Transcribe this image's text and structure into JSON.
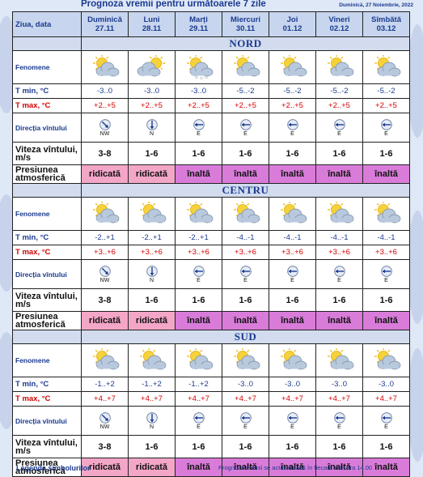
{
  "title": "Prognoza vremii pentru următoarele 7 zile",
  "date_note": "Duminică, 27 Noiembrie, 2022",
  "header_label": "Ziua, data",
  "days": [
    {
      "name": "Duminică",
      "date": "27.11"
    },
    {
      "name": "Luni",
      "date": "28.11"
    },
    {
      "name": "Marți",
      "date": "29.11"
    },
    {
      "name": "Miercuri",
      "date": "30.11"
    },
    {
      "name": "Joi",
      "date": "01.12"
    },
    {
      "name": "Vineri",
      "date": "02.12"
    },
    {
      "name": "Sîmbătă",
      "date": "03.12"
    }
  ],
  "row_labels": {
    "fenomene": "Fenomene",
    "tmin": "T min, °C",
    "tmax": "T max, °C",
    "directie": "Direcția vîntului",
    "viteza": "Viteza vîntului, m/s",
    "presiune": "Presiunea atmosferică"
  },
  "regions": [
    {
      "name": "NORD",
      "icons": [
        "sun-cloud-icon",
        "cloud-sun-behind-icon",
        "cloud-snow-icon",
        "sun-cloud-icon",
        "sun-cloud-icon",
        "sun-cloud-icon",
        "sun-cloud-icon"
      ],
      "tmin": [
        "-3..0",
        "-3..0",
        "-3..0",
        "-5..-2",
        "-5..-2",
        "-5..-2",
        "-5..-2"
      ],
      "tmax": [
        "+2..+5",
        "+2..+5",
        "+2..+5",
        "+2..+5",
        "+2..+5",
        "+2..+5",
        "+2..+5"
      ],
      "dir": [
        "NW",
        "N",
        "E",
        "E",
        "E",
        "E",
        "E"
      ],
      "speed": [
        "3-8",
        "1-6",
        "1-6",
        "1-6",
        "1-6",
        "1-6",
        "1-6"
      ],
      "pressure": [
        "ridicată",
        "ridicată",
        "înaltă",
        "înaltă",
        "înaltă",
        "înaltă",
        "înaltă"
      ]
    },
    {
      "name": "CENTRU",
      "icons": [
        "sun-cloud-icon",
        "sun-cloud-icon",
        "sun-cloud-icon",
        "sun-cloud-icon",
        "sun-cloud-icon",
        "sun-cloud-icon",
        "sun-cloud-icon"
      ],
      "tmin": [
        "-2..+1",
        "-2..+1",
        "-2..+1",
        "-4..-1",
        "-4..-1",
        "-4..-1",
        "-4..-1"
      ],
      "tmax": [
        "+3..+6",
        "+3..+6",
        "+3..+6",
        "+3..+6",
        "+3..+6",
        "+3..+6",
        "+3..+6"
      ],
      "dir": [
        "NW",
        "N",
        "E",
        "E",
        "E",
        "E",
        "E"
      ],
      "speed": [
        "3-8",
        "1-6",
        "1-6",
        "1-6",
        "1-6",
        "1-6",
        "1-6"
      ],
      "pressure": [
        "ridicată",
        "ridicată",
        "înaltă",
        "înaltă",
        "înaltă",
        "înaltă",
        "înaltă"
      ]
    },
    {
      "name": "SUD",
      "icons": [
        "sun-cloud-icon",
        "sun-cloud-icon",
        "sun-cloud-icon",
        "sun-cloud-icon",
        "sun-cloud-icon",
        "sun-cloud-icon",
        "sun-cloud-icon"
      ],
      "tmin": [
        "-1..+2",
        "-1..+2",
        "-1..+2",
        "-3..0",
        "-3..0",
        "-3..0",
        "-3..0"
      ],
      "tmax": [
        "+4..+7",
        "+4..+7",
        "+4..+7",
        "+4..+7",
        "+4..+7",
        "+4..+7",
        "+4..+7"
      ],
      "dir": [
        "NW",
        "N",
        "E",
        "E",
        "E",
        "E",
        "E"
      ],
      "speed": [
        "3-8",
        "1-6",
        "1-6",
        "1-6",
        "1-6",
        "1-6",
        "1-6"
      ],
      "pressure": [
        "ridicată",
        "ridicată",
        "înaltă",
        "înaltă",
        "înaltă",
        "înaltă",
        "înaltă"
      ]
    }
  ],
  "footer": {
    "legend": "Legenda simbolurilor",
    "update_note": "Prognoza vremii se actualizează în fiecare zi la ora 14.00"
  },
  "colors": {
    "header_blue": "#1b3a8f",
    "tmax_red": "#d40000",
    "pressure_ridicata": "#f4a6c8",
    "pressure_inalta": "#d97cd9",
    "region_band": "#d2dcee"
  }
}
